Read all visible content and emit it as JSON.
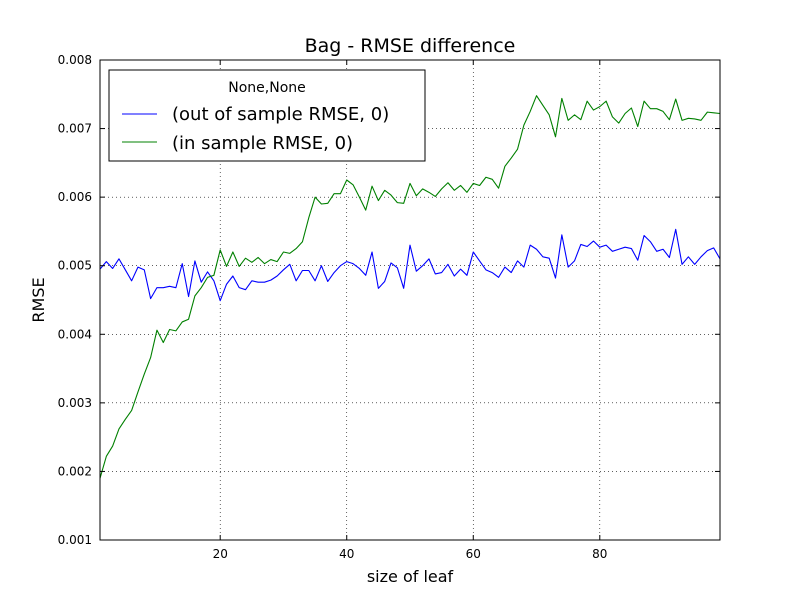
{
  "chart_data": {
    "type": "line",
    "title": "Bag - RMSE difference",
    "xlabel": "size of leaf",
    "ylabel": "RMSE",
    "xlim": [
      1,
      99
    ],
    "ylim": [
      0.001,
      0.008
    ],
    "xticks": [
      20,
      40,
      60,
      80
    ],
    "xtick_labels": [
      "20",
      "40",
      "60",
      "80"
    ],
    "yticks": [
      0.001,
      0.002,
      0.003,
      0.004,
      0.005,
      0.006,
      0.007,
      0.008
    ],
    "ytick_labels": [
      "0.001",
      "0.002",
      "0.003",
      "0.004",
      "0.005",
      "0.006",
      "0.007",
      "0.008"
    ],
    "grid": true,
    "legend": {
      "title": "None,None",
      "placement": "top-left"
    },
    "series": [
      {
        "name": "(out of sample RMSE, 0)",
        "color": "#0000ff",
        "x": [
          1,
          2,
          3,
          4,
          5,
          6,
          7,
          8,
          9,
          10,
          11,
          12,
          13,
          14,
          15,
          16,
          17,
          18,
          19,
          20,
          21,
          22,
          23,
          24,
          25,
          26,
          27,
          28,
          29,
          30,
          31,
          32,
          33,
          34,
          35,
          36,
          37,
          38,
          39,
          40,
          41,
          42,
          43,
          44,
          45,
          46,
          47,
          48,
          49,
          50,
          51,
          52,
          53,
          54,
          55,
          56,
          57,
          58,
          59,
          60,
          61,
          62,
          63,
          64,
          65,
          66,
          67,
          68,
          69,
          70,
          71,
          72,
          73,
          74,
          75,
          76,
          77,
          78,
          79,
          80,
          81,
          82,
          83,
          84,
          85,
          86,
          87,
          88,
          89,
          90,
          91,
          92,
          93,
          94,
          95,
          96,
          97,
          98,
          99
        ],
        "y": [
          0.00495,
          0.00506,
          0.00496,
          0.0051,
          0.00494,
          0.00478,
          0.00498,
          0.00494,
          0.00452,
          0.00468,
          0.00468,
          0.0047,
          0.00468,
          0.00503,
          0.00455,
          0.00507,
          0.00476,
          0.00491,
          0.00478,
          0.00449,
          0.00473,
          0.00485,
          0.00468,
          0.00465,
          0.00478,
          0.00476,
          0.00476,
          0.00479,
          0.00485,
          0.00494,
          0.00502,
          0.00478,
          0.00493,
          0.00493,
          0.00478,
          0.005,
          0.00477,
          0.0049,
          0.005,
          0.00506,
          0.00503,
          0.00496,
          0.00486,
          0.0052,
          0.00467,
          0.00477,
          0.00504,
          0.00497,
          0.00467,
          0.0053,
          0.00492,
          0.005,
          0.0051,
          0.00488,
          0.0049,
          0.00502,
          0.00485,
          0.00495,
          0.00486,
          0.0052,
          0.00507,
          0.00494,
          0.0049,
          0.00483,
          0.00498,
          0.0049,
          0.00507,
          0.00498,
          0.0053,
          0.00524,
          0.00513,
          0.00511,
          0.00482,
          0.00545,
          0.00498,
          0.00507,
          0.00531,
          0.00528,
          0.00536,
          0.00527,
          0.0053,
          0.00521,
          0.00524,
          0.00527,
          0.00525,
          0.00508,
          0.00544,
          0.00535,
          0.00521,
          0.00524,
          0.00512,
          0.00553,
          0.00502,
          0.00513,
          0.00502,
          0.00513,
          0.00522,
          0.00526,
          0.0051
        ]
      },
      {
        "name": "(in sample RMSE, 0)",
        "color": "#008000",
        "x": [
          1,
          2,
          3,
          4,
          5,
          6,
          7,
          8,
          9,
          10,
          11,
          12,
          13,
          14,
          15,
          16,
          17,
          18,
          19,
          20,
          21,
          22,
          23,
          24,
          25,
          26,
          27,
          28,
          29,
          30,
          31,
          32,
          33,
          34,
          35,
          36,
          37,
          38,
          39,
          40,
          41,
          42,
          43,
          44,
          45,
          46,
          47,
          48,
          49,
          50,
          51,
          52,
          53,
          54,
          55,
          56,
          57,
          58,
          59,
          60,
          61,
          62,
          63,
          64,
          65,
          66,
          67,
          68,
          69,
          70,
          71,
          72,
          73,
          74,
          75,
          76,
          77,
          78,
          79,
          80,
          81,
          82,
          83,
          84,
          85,
          86,
          87,
          88,
          89,
          90,
          91,
          92,
          93,
          94,
          95,
          96,
          97,
          98,
          99
        ],
        "y": [
          0.0019,
          0.00222,
          0.00237,
          0.00262,
          0.00276,
          0.00289,
          0.00316,
          0.00342,
          0.00366,
          0.00406,
          0.00388,
          0.00407,
          0.00405,
          0.00418,
          0.00422,
          0.00456,
          0.00468,
          0.00483,
          0.00486,
          0.00523,
          0.00499,
          0.0052,
          0.00499,
          0.00511,
          0.00505,
          0.00512,
          0.00503,
          0.00509,
          0.00506,
          0.0052,
          0.00518,
          0.00525,
          0.00535,
          0.0057,
          0.006,
          0.0059,
          0.00591,
          0.00605,
          0.00605,
          0.00625,
          0.00618,
          0.006,
          0.00581,
          0.00616,
          0.00595,
          0.0061,
          0.00603,
          0.00592,
          0.00591,
          0.0062,
          0.00602,
          0.00612,
          0.00607,
          0.00601,
          0.00612,
          0.00621,
          0.0061,
          0.00617,
          0.00607,
          0.0062,
          0.00617,
          0.00629,
          0.00626,
          0.00613,
          0.00645,
          0.00657,
          0.0067,
          0.00705,
          0.00725,
          0.00748,
          0.00734,
          0.0072,
          0.00688,
          0.00744,
          0.00712,
          0.0072,
          0.00713,
          0.0074,
          0.00727,
          0.00732,
          0.0074,
          0.00717,
          0.00708,
          0.00722,
          0.0073,
          0.00703,
          0.0074,
          0.00729,
          0.00729,
          0.00725,
          0.00713,
          0.00743,
          0.00712,
          0.00715,
          0.00714,
          0.00712,
          0.00724,
          0.00723,
          0.00722
        ]
      }
    ]
  }
}
